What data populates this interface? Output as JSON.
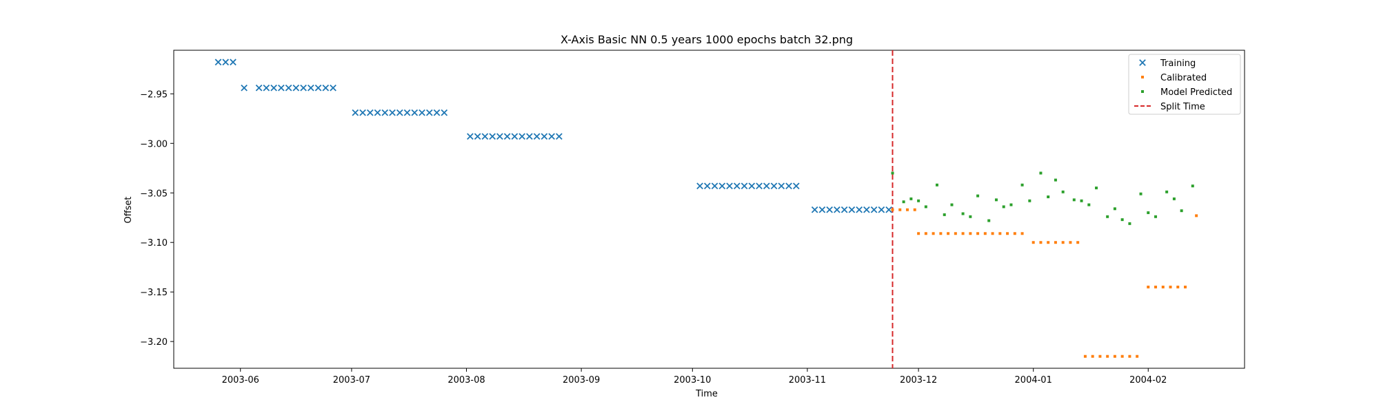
{
  "chart_data": {
    "type": "scatter",
    "title": "X-Axis Basic NN 0.5 years 1000 epochs batch 32.png",
    "xlabel": "Time",
    "ylabel": "Offset",
    "xlim": [
      "2003-05-14",
      "2004-02-27"
    ],
    "ylim": [
      -3.227,
      -2.906
    ],
    "x_ticks": [
      "2003-06",
      "2003-07",
      "2003-08",
      "2003-09",
      "2003-10",
      "2003-11",
      "2003-12",
      "2004-01",
      "2004-02"
    ],
    "y_ticks": [
      -2.95,
      -3.0,
      -3.05,
      -3.1,
      -3.15,
      -3.2
    ],
    "y_tick_labels": [
      "−2.95",
      "−3.00",
      "−3.05",
      "−3.10",
      "−3.15",
      "−3.20"
    ],
    "grid": false,
    "legend_position": "top-right",
    "split_time": "2003-11-24",
    "colors": {
      "Training": "#1f77b4",
      "Calibrated": "#ff7f0e",
      "Model Predicted": "#2ca02c",
      "Split Time": "#d62728"
    },
    "series": [
      {
        "name": "Training",
        "marker": "x",
        "points": [
          [
            "2003-05-26",
            -2.918
          ],
          [
            "2003-05-28",
            -2.918
          ],
          [
            "2003-05-30",
            -2.918
          ],
          [
            "2003-06-02",
            -2.944
          ],
          [
            "2003-06-06",
            -2.944
          ],
          [
            "2003-06-08",
            -2.944
          ],
          [
            "2003-06-10",
            -2.944
          ],
          [
            "2003-06-12",
            -2.944
          ],
          [
            "2003-06-14",
            -2.944
          ],
          [
            "2003-06-16",
            -2.944
          ],
          [
            "2003-06-18",
            -2.944
          ],
          [
            "2003-06-20",
            -2.944
          ],
          [
            "2003-06-22",
            -2.944
          ],
          [
            "2003-06-24",
            -2.944
          ],
          [
            "2003-06-26",
            -2.944
          ],
          [
            "2003-07-02",
            -2.969
          ],
          [
            "2003-07-04",
            -2.969
          ],
          [
            "2003-07-06",
            -2.969
          ],
          [
            "2003-07-08",
            -2.969
          ],
          [
            "2003-07-10",
            -2.969
          ],
          [
            "2003-07-12",
            -2.969
          ],
          [
            "2003-07-14",
            -2.969
          ],
          [
            "2003-07-16",
            -2.969
          ],
          [
            "2003-07-18",
            -2.969
          ],
          [
            "2003-07-20",
            -2.969
          ],
          [
            "2003-07-22",
            -2.969
          ],
          [
            "2003-07-24",
            -2.969
          ],
          [
            "2003-07-26",
            -2.969
          ],
          [
            "2003-08-02",
            -2.993
          ],
          [
            "2003-08-04",
            -2.993
          ],
          [
            "2003-08-06",
            -2.993
          ],
          [
            "2003-08-08",
            -2.993
          ],
          [
            "2003-08-10",
            -2.993
          ],
          [
            "2003-08-12",
            -2.993
          ],
          [
            "2003-08-14",
            -2.993
          ],
          [
            "2003-08-16",
            -2.993
          ],
          [
            "2003-08-18",
            -2.993
          ],
          [
            "2003-08-20",
            -2.993
          ],
          [
            "2003-08-22",
            -2.993
          ],
          [
            "2003-08-24",
            -2.993
          ],
          [
            "2003-08-26",
            -2.993
          ],
          [
            "2003-10-03",
            -3.043
          ],
          [
            "2003-10-05",
            -3.043
          ],
          [
            "2003-10-07",
            -3.043
          ],
          [
            "2003-10-09",
            -3.043
          ],
          [
            "2003-10-11",
            -3.043
          ],
          [
            "2003-10-13",
            -3.043
          ],
          [
            "2003-10-15",
            -3.043
          ],
          [
            "2003-10-17",
            -3.043
          ],
          [
            "2003-10-19",
            -3.043
          ],
          [
            "2003-10-21",
            -3.043
          ],
          [
            "2003-10-23",
            -3.043
          ],
          [
            "2003-10-25",
            -3.043
          ],
          [
            "2003-10-27",
            -3.043
          ],
          [
            "2003-10-29",
            -3.043
          ],
          [
            "2003-11-03",
            -3.067
          ],
          [
            "2003-11-05",
            -3.067
          ],
          [
            "2003-11-07",
            -3.067
          ],
          [
            "2003-11-09",
            -3.067
          ],
          [
            "2003-11-11",
            -3.067
          ],
          [
            "2003-11-13",
            -3.067
          ],
          [
            "2003-11-15",
            -3.067
          ],
          [
            "2003-11-17",
            -3.067
          ],
          [
            "2003-11-19",
            -3.067
          ],
          [
            "2003-11-21",
            -3.067
          ],
          [
            "2003-11-23",
            -3.067
          ]
        ]
      },
      {
        "name": "Calibrated",
        "marker": "dot",
        "points": [
          [
            "2003-11-24",
            -3.067
          ],
          [
            "2003-11-26",
            -3.067
          ],
          [
            "2003-11-28",
            -3.067
          ],
          [
            "2003-11-30",
            -3.067
          ],
          [
            "2003-12-01",
            -3.091
          ],
          [
            "2003-12-03",
            -3.091
          ],
          [
            "2003-12-05",
            -3.091
          ],
          [
            "2003-12-07",
            -3.091
          ],
          [
            "2003-12-09",
            -3.091
          ],
          [
            "2003-12-11",
            -3.091
          ],
          [
            "2003-12-13",
            -3.091
          ],
          [
            "2003-12-15",
            -3.091
          ],
          [
            "2003-12-17",
            -3.091
          ],
          [
            "2003-12-19",
            -3.091
          ],
          [
            "2003-12-21",
            -3.091
          ],
          [
            "2003-12-23",
            -3.091
          ],
          [
            "2003-12-25",
            -3.091
          ],
          [
            "2003-12-27",
            -3.091
          ],
          [
            "2003-12-29",
            -3.091
          ],
          [
            "2004-01-01",
            -3.1
          ],
          [
            "2004-01-03",
            -3.1
          ],
          [
            "2004-01-05",
            -3.1
          ],
          [
            "2004-01-07",
            -3.1
          ],
          [
            "2004-01-09",
            -3.1
          ],
          [
            "2004-01-11",
            -3.1
          ],
          [
            "2004-01-13",
            -3.1
          ],
          [
            "2004-01-15",
            -3.215
          ],
          [
            "2004-01-17",
            -3.215
          ],
          [
            "2004-01-19",
            -3.215
          ],
          [
            "2004-01-21",
            -3.215
          ],
          [
            "2004-01-23",
            -3.215
          ],
          [
            "2004-01-25",
            -3.215
          ],
          [
            "2004-01-27",
            -3.215
          ],
          [
            "2004-01-29",
            -3.215
          ],
          [
            "2004-02-01",
            -3.145
          ],
          [
            "2004-02-03",
            -3.145
          ],
          [
            "2004-02-05",
            -3.145
          ],
          [
            "2004-02-07",
            -3.145
          ],
          [
            "2004-02-09",
            -3.145
          ],
          [
            "2004-02-11",
            -3.145
          ],
          [
            "2004-02-14",
            -3.073
          ]
        ]
      },
      {
        "name": "Model Predicted",
        "marker": "dot",
        "points": [
          [
            "2003-11-24",
            -3.03
          ],
          [
            "2003-11-27",
            -3.059
          ],
          [
            "2003-11-29",
            -3.056
          ],
          [
            "2003-12-01",
            -3.058
          ],
          [
            "2003-12-03",
            -3.064
          ],
          [
            "2003-12-06",
            -3.042
          ],
          [
            "2003-12-08",
            -3.072
          ],
          [
            "2003-12-10",
            -3.062
          ],
          [
            "2003-12-13",
            -3.071
          ],
          [
            "2003-12-15",
            -3.074
          ],
          [
            "2003-12-17",
            -3.053
          ],
          [
            "2003-12-20",
            -3.078
          ],
          [
            "2003-12-22",
            -3.057
          ],
          [
            "2003-12-24",
            -3.064
          ],
          [
            "2003-12-26",
            -3.062
          ],
          [
            "2003-12-29",
            -3.042
          ],
          [
            "2003-12-31",
            -3.058
          ],
          [
            "2004-01-03",
            -3.03
          ],
          [
            "2004-01-05",
            -3.054
          ],
          [
            "2004-01-07",
            -3.037
          ],
          [
            "2004-01-09",
            -3.049
          ],
          [
            "2004-01-12",
            -3.057
          ],
          [
            "2004-01-14",
            -3.058
          ],
          [
            "2004-01-16",
            -3.062
          ],
          [
            "2004-01-18",
            -3.045
          ],
          [
            "2004-01-21",
            -3.074
          ],
          [
            "2004-01-23",
            -3.066
          ],
          [
            "2004-01-25",
            -3.077
          ],
          [
            "2004-01-27",
            -3.081
          ],
          [
            "2004-01-30",
            -3.051
          ],
          [
            "2004-02-01",
            -3.07
          ],
          [
            "2004-02-03",
            -3.074
          ],
          [
            "2004-02-06",
            -3.049
          ],
          [
            "2004-02-08",
            -3.056
          ],
          [
            "2004-02-10",
            -3.068
          ],
          [
            "2004-02-13",
            -3.043
          ]
        ]
      }
    ],
    "legend": [
      {
        "label": "Training",
        "marker": "x"
      },
      {
        "label": "Calibrated",
        "marker": "dot"
      },
      {
        "label": "Model Predicted",
        "marker": "dot"
      },
      {
        "label": "Split Time",
        "marker": "dashed-line"
      }
    ]
  }
}
